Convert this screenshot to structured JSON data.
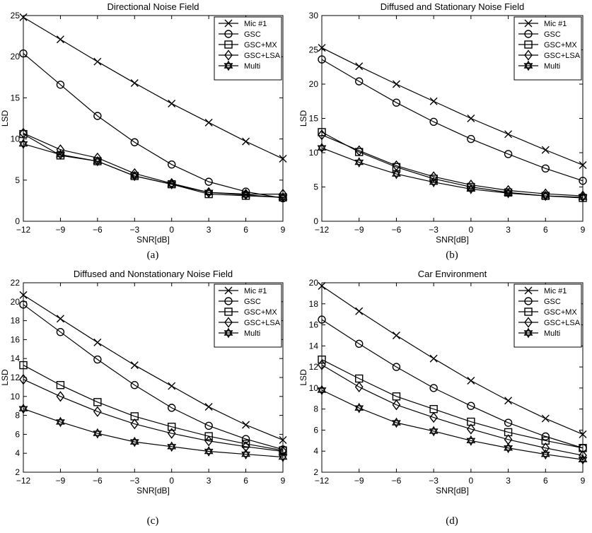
{
  "chart_data": [
    {
      "type": "line",
      "title": "Directional Noise Field",
      "xlabel": "SNR[dB]",
      "ylabel": "LSD",
      "caption": "(a)",
      "x": [
        -12,
        -9,
        -6,
        -3,
        0,
        3,
        6,
        9
      ],
      "xlim": [
        -12,
        9
      ],
      "ylim": [
        0,
        25
      ],
      "yticks": [
        0,
        5,
        10,
        15,
        20,
        25
      ],
      "grid": false,
      "legend_position": "top-right",
      "series": [
        {
          "name": "Mic #1",
          "marker": "x",
          "values": [
            24.8,
            22.1,
            19.4,
            16.8,
            14.3,
            12.0,
            9.7,
            7.6
          ]
        },
        {
          "name": "GSC",
          "marker": "circle",
          "values": [
            20.4,
            16.6,
            12.8,
            9.6,
            6.9,
            4.8,
            3.6,
            2.8
          ]
        },
        {
          "name": "GSC+MX",
          "marker": "square",
          "values": [
            10.6,
            8.0,
            7.3,
            5.5,
            4.5,
            3.3,
            3.1,
            2.9
          ]
        },
        {
          "name": "GSC+LSA",
          "marker": "diamond",
          "values": [
            10.7,
            8.7,
            7.7,
            5.8,
            4.6,
            3.5,
            3.3,
            3.3
          ]
        },
        {
          "name": "Multi",
          "marker": "star",
          "values": [
            9.4,
            8.1,
            7.3,
            5.5,
            4.5,
            3.5,
            3.2,
            2.9
          ]
        }
      ]
    },
    {
      "type": "line",
      "title": "Diffused and Stationary Noise Field",
      "xlabel": "SNR[dB]",
      "ylabel": "LSD",
      "caption": "(b)",
      "x": [
        -12,
        -9,
        -6,
        -3,
        0,
        3,
        6,
        9
      ],
      "xlim": [
        -12,
        9
      ],
      "ylim": [
        0,
        30
      ],
      "yticks": [
        0,
        5,
        10,
        15,
        20,
        25,
        30
      ],
      "grid": false,
      "legend_position": "top-right",
      "series": [
        {
          "name": "Mic #1",
          "marker": "x",
          "values": [
            25.3,
            22.6,
            20.0,
            17.5,
            15.0,
            12.7,
            10.4,
            8.2
          ]
        },
        {
          "name": "GSC",
          "marker": "circle",
          "values": [
            23.6,
            20.4,
            17.3,
            14.5,
            12.0,
            9.8,
            7.7,
            5.9
          ]
        },
        {
          "name": "GSC+MX",
          "marker": "square",
          "values": [
            13.0,
            10.1,
            7.9,
            6.2,
            5.0,
            4.2,
            3.7,
            3.4
          ]
        },
        {
          "name": "GSC+LSA",
          "marker": "diamond",
          "values": [
            12.6,
            10.3,
            8.1,
            6.5,
            5.3,
            4.5,
            4.0,
            3.7
          ]
        },
        {
          "name": "Multi",
          "marker": "star",
          "values": [
            10.7,
            8.6,
            6.9,
            5.7,
            4.7,
            4.1,
            3.7,
            3.5
          ]
        }
      ]
    },
    {
      "type": "line",
      "title": "Diffused and Nonstationary Noise Field",
      "xlabel": "SNR[dB]",
      "ylabel": "LSD",
      "caption": "(c)",
      "x": [
        -12,
        -9,
        -6,
        -3,
        0,
        3,
        6,
        9
      ],
      "xlim": [
        -12,
        9
      ],
      "ylim": [
        2,
        22
      ],
      "yticks": [
        2,
        4,
        6,
        8,
        10,
        12,
        14,
        16,
        18,
        20,
        22
      ],
      "grid": false,
      "legend_position": "top-right",
      "series": [
        {
          "name": "Mic #1",
          "marker": "x",
          "values": [
            20.7,
            18.2,
            15.7,
            13.3,
            11.1,
            8.9,
            7.0,
            5.4
          ]
        },
        {
          "name": "GSC",
          "marker": "circle",
          "values": [
            19.7,
            16.8,
            13.9,
            11.2,
            8.8,
            6.9,
            5.5,
            4.4
          ]
        },
        {
          "name": "GSC+MX",
          "marker": "square",
          "values": [
            13.3,
            11.2,
            9.4,
            7.9,
            6.8,
            5.8,
            5.0,
            4.3
          ]
        },
        {
          "name": "GSC+LSA",
          "marker": "diamond",
          "values": [
            11.8,
            10.0,
            8.4,
            7.1,
            6.1,
            5.3,
            4.7,
            4.2
          ]
        },
        {
          "name": "Multi",
          "marker": "star",
          "values": [
            8.7,
            7.3,
            6.1,
            5.2,
            4.7,
            4.2,
            3.9,
            3.6
          ]
        }
      ]
    },
    {
      "type": "line",
      "title": "Car Environment",
      "xlabel": "SNR[dB]",
      "ylabel": "LSD",
      "caption": "(d)",
      "x": [
        -12,
        -9,
        -6,
        -3,
        0,
        3,
        6,
        9
      ],
      "xlim": [
        -12,
        9
      ],
      "ylim": [
        2,
        20
      ],
      "yticks": [
        2,
        4,
        6,
        8,
        10,
        12,
        14,
        16,
        18,
        20
      ],
      "grid": false,
      "legend_position": "top-right",
      "series": [
        {
          "name": "Mic #1",
          "marker": "x",
          "values": [
            19.7,
            17.3,
            15.0,
            12.8,
            10.7,
            8.8,
            7.1,
            5.6
          ]
        },
        {
          "name": "GSC",
          "marker": "circle",
          "values": [
            16.5,
            14.2,
            12.0,
            10.0,
            8.3,
            6.7,
            5.4,
            4.3
          ]
        },
        {
          "name": "GSC+MX",
          "marker": "square",
          "values": [
            12.7,
            10.9,
            9.2,
            8.0,
            6.8,
            5.8,
            5.0,
            4.3
          ]
        },
        {
          "name": "GSC+LSA",
          "marker": "diamond",
          "values": [
            12.2,
            10.1,
            8.4,
            7.2,
            6.1,
            5.1,
            4.3,
            3.6
          ]
        },
        {
          "name": "Multi",
          "marker": "star",
          "values": [
            9.8,
            8.1,
            6.7,
            5.9,
            5.0,
            4.3,
            3.7,
            3.2
          ]
        }
      ]
    }
  ]
}
